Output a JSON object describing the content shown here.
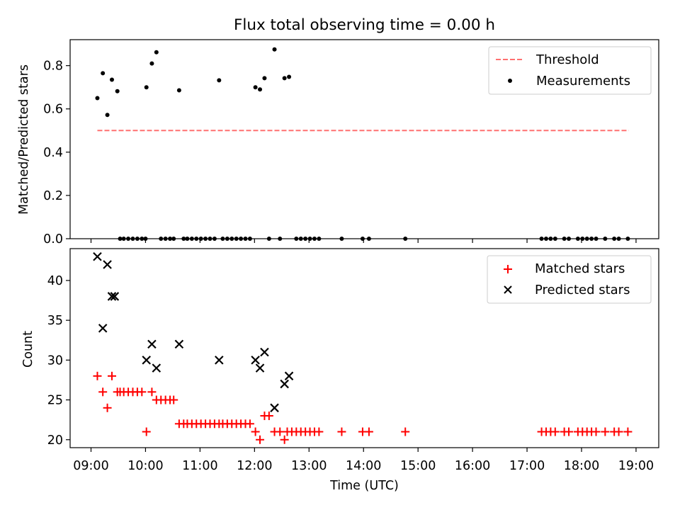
{
  "chart_data": [
    {
      "type": "scatter",
      "title": "Flux total observing time = 0.00 h",
      "xlabel": "",
      "ylabel": "Matched/Predicted stars",
      "xlim": [
        "08:37",
        "19:25"
      ],
      "ylim": [
        0,
        0.92
      ],
      "yticks": [
        0.0,
        0.2,
        0.4,
        0.6,
        0.8
      ],
      "ytick_labels": [
        "0.0",
        "0.2",
        "0.4",
        "0.6",
        "0.8"
      ],
      "grid": false,
      "legend_position": "upper right",
      "legend": [
        "Threshold",
        "Measurements"
      ],
      "threshold": {
        "name": "Threshold",
        "value": 0.5,
        "x_start": "09:07",
        "x_end": "18:52",
        "color": "#ff7070",
        "style": "dashed"
      },
      "series": [
        {
          "name": "Measurements",
          "marker": "dot",
          "color": "#000000",
          "points": [
            [
              "09:07",
              0.65
            ],
            [
              "09:13",
              0.765
            ],
            [
              "09:18",
              0.572
            ],
            [
              "09:23",
              0.735
            ],
            [
              "09:29",
              0.682
            ],
            [
              "09:32",
              0
            ],
            [
              "09:36",
              0
            ],
            [
              "09:41",
              0
            ],
            [
              "09:46",
              0
            ],
            [
              "09:51",
              0
            ],
            [
              "09:56",
              0
            ],
            [
              "10:00",
              0
            ],
            [
              "10:01",
              0.7
            ],
            [
              "10:07",
              0.81
            ],
            [
              "10:12",
              0.862
            ],
            [
              "10:17",
              0
            ],
            [
              "10:22",
              0
            ],
            [
              "10:27",
              0
            ],
            [
              "10:31",
              0
            ],
            [
              "10:37",
              0.686
            ],
            [
              "10:42",
              0
            ],
            [
              "10:46",
              0
            ],
            [
              "10:51",
              0
            ],
            [
              "10:56",
              0
            ],
            [
              "11:01",
              0
            ],
            [
              "11:06",
              0
            ],
            [
              "11:11",
              0
            ],
            [
              "11:16",
              0
            ],
            [
              "11:21",
              0.732
            ],
            [
              "11:25",
              0
            ],
            [
              "11:30",
              0
            ],
            [
              "11:35",
              0
            ],
            [
              "11:40",
              0
            ],
            [
              "11:45",
              0
            ],
            [
              "11:50",
              0
            ],
            [
              "11:55",
              0
            ],
            [
              "12:01",
              0.7
            ],
            [
              "12:06",
              0.69
            ],
            [
              "12:11",
              0.742
            ],
            [
              "12:16",
              0
            ],
            [
              "12:22",
              0.875
            ],
            [
              "12:28",
              0
            ],
            [
              "12:33",
              0.742
            ],
            [
              "12:38",
              0.748
            ],
            [
              "12:46",
              0
            ],
            [
              "12:51",
              0
            ],
            [
              "12:56",
              0
            ],
            [
              "13:01",
              0
            ],
            [
              "13:06",
              0
            ],
            [
              "13:11",
              0
            ],
            [
              "13:36",
              0
            ],
            [
              "13:59",
              0
            ],
            [
              "14:06",
              0
            ],
            [
              "14:46",
              0
            ],
            [
              "17:16",
              0
            ],
            [
              "17:21",
              0
            ],
            [
              "17:26",
              0
            ],
            [
              "17:31",
              0
            ],
            [
              "17:41",
              0
            ],
            [
              "17:46",
              0
            ],
            [
              "17:56",
              0
            ],
            [
              "18:01",
              0
            ],
            [
              "18:06",
              0
            ],
            [
              "18:11",
              0
            ],
            [
              "18:16",
              0
            ],
            [
              "18:26",
              0
            ],
            [
              "18:36",
              0
            ],
            [
              "18:41",
              0
            ],
            [
              "18:51",
              0
            ]
          ]
        }
      ]
    },
    {
      "type": "scatter",
      "title": "",
      "xlabel": "Time (UTC)",
      "ylabel": "Count",
      "xlim": [
        "08:37",
        "19:25"
      ],
      "ylim": [
        19,
        44
      ],
      "yticks": [
        20,
        25,
        30,
        35,
        40
      ],
      "ytick_labels": [
        "20",
        "25",
        "30",
        "35",
        "40"
      ],
      "xticks": [
        "09:00",
        "10:00",
        "11:00",
        "12:00",
        "13:00",
        "14:00",
        "15:00",
        "16:00",
        "17:00",
        "18:00",
        "19:00"
      ],
      "xtick_labels": [
        "09:00",
        "10:00",
        "11:00",
        "12:00",
        "13:00",
        "14:00",
        "15:00",
        "16:00",
        "17:00",
        "18:00",
        "19:00"
      ],
      "grid": false,
      "legend_position": "upper right",
      "legend": [
        "Matched stars",
        "Predicted stars"
      ],
      "series": [
        {
          "name": "Matched stars",
          "marker": "plus",
          "color": "#ff0000",
          "points": [
            [
              "09:07",
              28
            ],
            [
              "09:13",
              26
            ],
            [
              "09:18",
              24
            ],
            [
              "09:23",
              28
            ],
            [
              "09:29",
              26
            ],
            [
              "09:32",
              26
            ],
            [
              "09:36",
              26
            ],
            [
              "09:41",
              26
            ],
            [
              "09:46",
              26
            ],
            [
              "09:51",
              26
            ],
            [
              "09:56",
              26
            ],
            [
              "10:01",
              21
            ],
            [
              "10:07",
              26
            ],
            [
              "10:12",
              25
            ],
            [
              "10:17",
              25
            ],
            [
              "10:22",
              25
            ],
            [
              "10:27",
              25
            ],
            [
              "10:31",
              25
            ],
            [
              "10:37",
              22
            ],
            [
              "10:42",
              22
            ],
            [
              "10:46",
              22
            ],
            [
              "10:51",
              22
            ],
            [
              "10:56",
              22
            ],
            [
              "11:01",
              22
            ],
            [
              "11:06",
              22
            ],
            [
              "11:11",
              22
            ],
            [
              "11:16",
              22
            ],
            [
              "11:21",
              22
            ],
            [
              "11:25",
              22
            ],
            [
              "11:30",
              22
            ],
            [
              "11:35",
              22
            ],
            [
              "11:40",
              22
            ],
            [
              "11:45",
              22
            ],
            [
              "11:50",
              22
            ],
            [
              "11:55",
              22
            ],
            [
              "12:01",
              21
            ],
            [
              "12:06",
              20
            ],
            [
              "12:11",
              23
            ],
            [
              "12:16",
              23
            ],
            [
              "12:22",
              21
            ],
            [
              "12:28",
              21
            ],
            [
              "12:33",
              20
            ],
            [
              "12:36",
              21
            ],
            [
              "12:41",
              21
            ],
            [
              "12:46",
              21
            ],
            [
              "12:51",
              21
            ],
            [
              "12:56",
              21
            ],
            [
              "13:01",
              21
            ],
            [
              "13:06",
              21
            ],
            [
              "13:11",
              21
            ],
            [
              "13:36",
              21
            ],
            [
              "13:59",
              21
            ],
            [
              "14:06",
              21
            ],
            [
              "14:46",
              21
            ],
            [
              "17:16",
              21
            ],
            [
              "17:21",
              21
            ],
            [
              "17:26",
              21
            ],
            [
              "17:31",
              21
            ],
            [
              "17:41",
              21
            ],
            [
              "17:46",
              21
            ],
            [
              "17:56",
              21
            ],
            [
              "18:01",
              21
            ],
            [
              "18:06",
              21
            ],
            [
              "18:11",
              21
            ],
            [
              "18:16",
              21
            ],
            [
              "18:26",
              21
            ],
            [
              "18:36",
              21
            ],
            [
              "18:41",
              21
            ],
            [
              "18:51",
              21
            ]
          ]
        },
        {
          "name": "Predicted stars",
          "marker": "x",
          "color": "#000000",
          "points": [
            [
              "09:07",
              43
            ],
            [
              "09:13",
              34
            ],
            [
              "09:18",
              42
            ],
            [
              "09:23",
              38
            ],
            [
              "09:26",
              38
            ],
            [
              "10:01",
              30
            ],
            [
              "10:07",
              32
            ],
            [
              "10:12",
              29
            ],
            [
              "10:37",
              32
            ],
            [
              "11:21",
              30
            ],
            [
              "12:01",
              30
            ],
            [
              "12:06",
              29
            ],
            [
              "12:11",
              31
            ],
            [
              "12:22",
              24
            ],
            [
              "12:33",
              27
            ],
            [
              "12:38",
              28
            ]
          ]
        }
      ]
    }
  ]
}
